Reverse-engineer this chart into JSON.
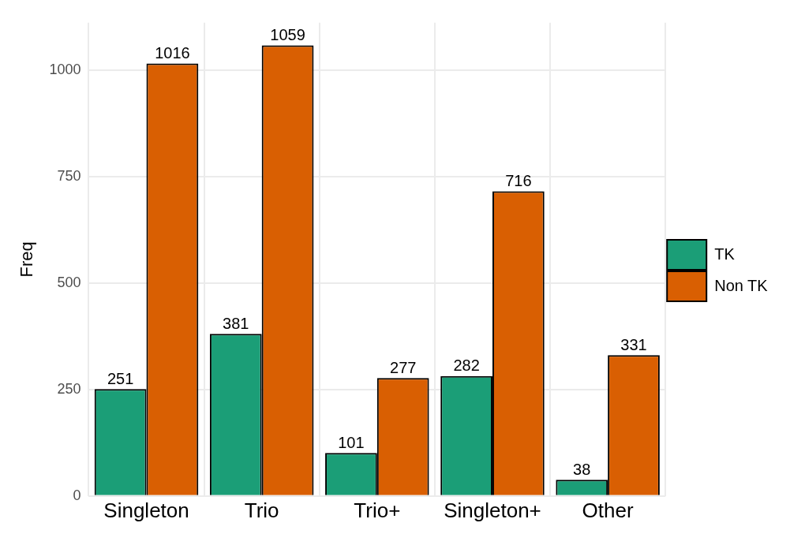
{
  "chart_data": {
    "type": "bar",
    "ylabel": "Freq",
    "categories": [
      "Singleton",
      "Trio",
      "Trio+",
      "Singleton+",
      "Other"
    ],
    "series": [
      {
        "name": "TK",
        "color": "#1b9e77",
        "values": [
          251,
          381,
          101,
          282,
          38
        ]
      },
      {
        "name": "Non TK",
        "color": "#d95f02",
        "values": [
          1016,
          1059,
          277,
          716,
          331
        ]
      }
    ],
    "ylim": [
      0,
      1112
    ],
    "yticks": [
      0,
      250,
      500,
      750,
      1000
    ],
    "grid": true,
    "legend": "right",
    "data_labels": true
  }
}
